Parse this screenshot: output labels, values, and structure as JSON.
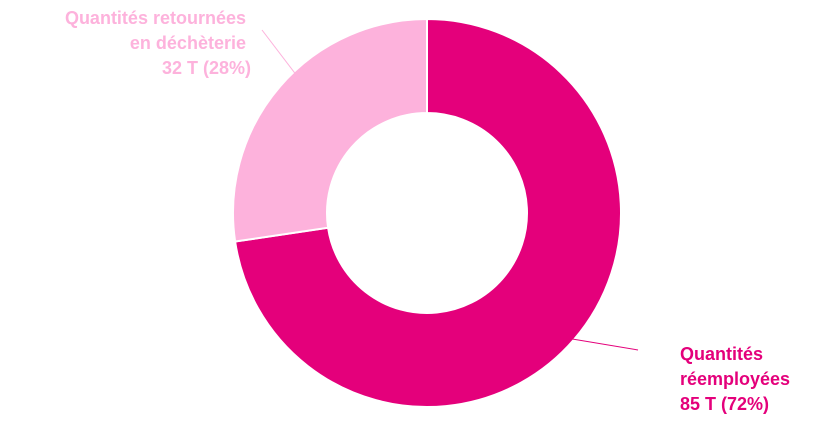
{
  "chart_data": {
    "type": "pie",
    "style": "donut",
    "categories": [
      "Quantités réemployées",
      "Quantités retournées en déchèterie"
    ],
    "values": [
      85,
      32
    ],
    "percentages": [
      72,
      28
    ],
    "unit": "T",
    "colors": [
      "#e4007b",
      "#fdb2dc"
    ],
    "legend": "none",
    "labels": [
      {
        "lines": [
          "Quantités",
          "réemployées",
          "85 T (72%)"
        ],
        "color": "#e4007b"
      },
      {
        "lines": [
          "Quantités retournées",
          "en déchèterie",
          "32 T (28%)"
        ],
        "color": "#fdb2dc"
      }
    ]
  }
}
